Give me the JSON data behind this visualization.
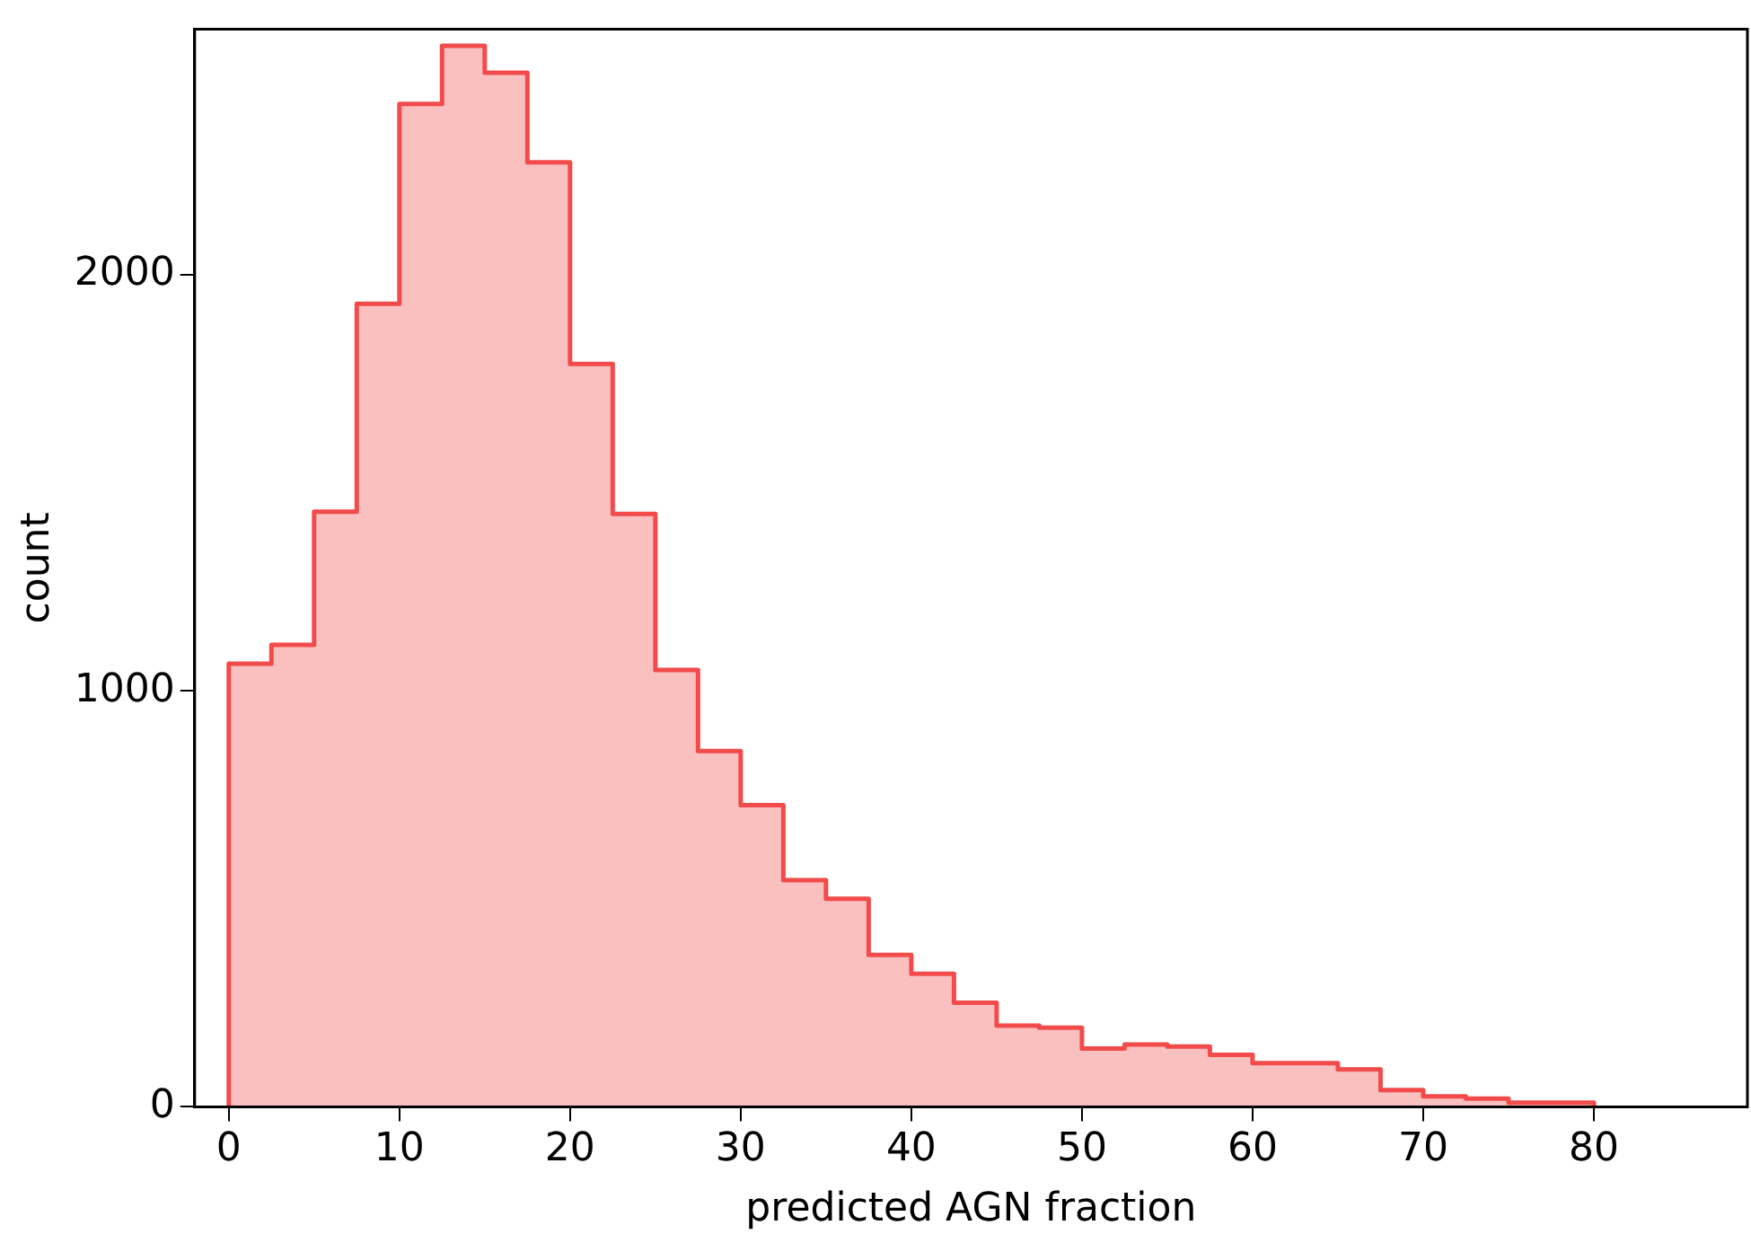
{
  "chart_data": {
    "type": "histogram",
    "xlabel": "predicted AGN fraction",
    "ylabel": "count",
    "bins": [
      0,
      2.5,
      5,
      7.5,
      10,
      12.5,
      15,
      17.5,
      20,
      22.5,
      25,
      27.5,
      30,
      32.5,
      35,
      37.5,
      40,
      42.5,
      45,
      47.5,
      50,
      52.5,
      55,
      57.5,
      60,
      62.5,
      65,
      67.5,
      70,
      72.5,
      75,
      77.5,
      80
    ],
    "values": [
      1065,
      1110,
      1430,
      1930,
      2410,
      2550,
      2485,
      2270,
      1785,
      1425,
      1050,
      855,
      725,
      545,
      500,
      365,
      320,
      250,
      195,
      190,
      140,
      150,
      145,
      125,
      105,
      105,
      90,
      40,
      25,
      20,
      10,
      10
    ],
    "color": "#f24b4b",
    "xlim": [
      -2,
      89
    ],
    "ylim": [
      0,
      2590
    ],
    "xticks": [
      0,
      10,
      20,
      30,
      40,
      50,
      60,
      70,
      80
    ],
    "yticks": [
      0,
      1000,
      2000
    ],
    "grid": false,
    "legend": false
  }
}
